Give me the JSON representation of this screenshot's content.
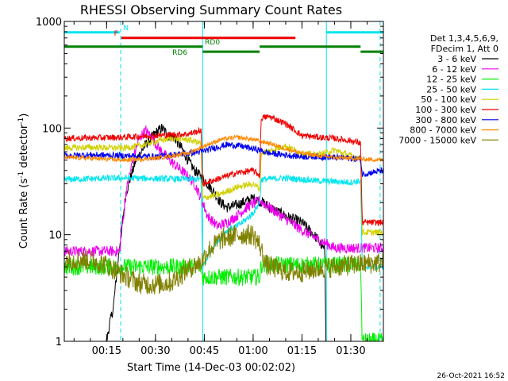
{
  "chart_data": {
    "type": "line",
    "title": "RHESSI Observing Summary Count Rates",
    "xlabel": "Start Time (14-Dec-03 00:02:02)",
    "ylabel_main": "Count Rate (s",
    "ylabel_sup1": "-1",
    "ylabel_mid": " detector",
    "ylabel_sup2": "-1",
    "ylabel_end": ")",
    "timestamp": "26-Oct-2021 16:52",
    "y_scale": "log",
    "ylim": [
      1,
      1000
    ],
    "xlim_minutes": [
      2.0,
      100.0
    ],
    "y_ticks": [
      {
        "value": 1,
        "label": "1"
      },
      {
        "value": 10,
        "label": "10"
      },
      {
        "value": 100,
        "label": "100"
      },
      {
        "value": 1000,
        "label": "1000"
      }
    ],
    "x_ticks": [
      {
        "minute": 15,
        "label": "00:15"
      },
      {
        "minute": 30,
        "label": "00:30"
      },
      {
        "minute": 45,
        "label": "00:45"
      },
      {
        "minute": 60,
        "label": "01:00"
      },
      {
        "minute": 75,
        "label": "01:15"
      },
      {
        "minute": 90,
        "label": "01:30"
      }
    ],
    "legend_header": [
      "Det 1,3,4,5,6,9,",
      "FDecim 1, Att 0"
    ],
    "legend_placement": "right",
    "flag_bars": [
      {
        "label": "N",
        "color": "#00e5ee",
        "value": 790,
        "segments": [
          [
            2,
            19.0
          ],
          [
            82.5,
            100
          ]
        ]
      },
      {
        "label": "F",
        "color": "#ee0000",
        "value": 700,
        "segments": [
          [
            19.5,
            73.0
          ]
        ]
      },
      {
        "label": "RD0",
        "color": "#008000",
        "value": 580,
        "segments": [
          [
            2,
            44.5
          ],
          [
            62.0,
            93.0
          ]
        ]
      },
      {
        "label": "RD6",
        "color": "#008000",
        "value": 520,
        "segments": [
          [
            44.5,
            62.0
          ],
          [
            93.0,
            100
          ]
        ]
      }
    ],
    "night_marks": [
      {
        "minute": 19.3,
        "style": "dashed"
      },
      {
        "minute": 44.5,
        "style": "solid"
      },
      {
        "minute": 82.5,
        "style": "solid"
      },
      {
        "minute": 99.0,
        "style": "dashed"
      }
    ],
    "series": [
      {
        "name": "3 - 6 keV",
        "color": "#000000",
        "noise": 0.05,
        "points": [
          [
            13,
            0.5
          ],
          [
            15,
            1
          ],
          [
            16,
            1.5
          ],
          [
            17,
            2
          ],
          [
            19,
            8
          ],
          [
            21,
            25
          ],
          [
            24,
            50
          ],
          [
            27,
            70
          ],
          [
            30,
            90
          ],
          [
            32,
            100
          ],
          [
            34,
            85
          ],
          [
            36,
            80
          ],
          [
            38,
            65
          ],
          [
            40,
            50
          ],
          [
            42,
            40
          ],
          [
            44,
            35
          ],
          [
            46,
            30
          ],
          [
            48,
            25
          ],
          [
            50,
            20
          ],
          [
            52,
            18
          ],
          [
            55,
            19
          ],
          [
            60,
            22
          ],
          [
            63,
            20
          ],
          [
            65,
            18
          ],
          [
            70,
            15
          ],
          [
            75,
            13
          ],
          [
            80,
            9
          ],
          [
            82,
            7
          ],
          [
            82.5,
            0.5
          ]
        ]
      },
      {
        "name": "6 - 12 keV",
        "color": "#ee00ee",
        "noise": 0.05,
        "points": [
          [
            13,
            7
          ],
          [
            19,
            7
          ],
          [
            21,
            25
          ],
          [
            23,
            50
          ],
          [
            25,
            80
          ],
          [
            27,
            95
          ],
          [
            29,
            80
          ],
          [
            31,
            65
          ],
          [
            33,
            55
          ],
          [
            36,
            45
          ],
          [
            38,
            40
          ],
          [
            40,
            35
          ],
          [
            42,
            30
          ],
          [
            44,
            22
          ],
          [
            46,
            15
          ],
          [
            49,
            12
          ],
          [
            52,
            13
          ],
          [
            55,
            15
          ],
          [
            58,
            18
          ],
          [
            62,
            21
          ],
          [
            65,
            18
          ],
          [
            70,
            14
          ],
          [
            75,
            11
          ],
          [
            80,
            9
          ],
          [
            85,
            7.5
          ]
        ]
      },
      {
        "name": "12 - 25 keV",
        "color": "#00ee00",
        "noise": 0.08,
        "points": [
          [
            2,
            5
          ],
          [
            44,
            5
          ],
          [
            44.5,
            4
          ],
          [
            62,
            4
          ],
          [
            62.5,
            5.2
          ],
          [
            93,
            5.2
          ],
          [
            93.5,
            1
          ],
          [
            100,
            1
          ]
        ]
      },
      {
        "name": "25 - 50 keV",
        "color": "#00e5ee",
        "noise": 0.03,
        "points": [
          [
            2,
            33
          ],
          [
            20,
            34
          ],
          [
            44,
            33
          ],
          [
            44.5,
            5
          ],
          [
            48,
            8
          ],
          [
            52,
            11
          ],
          [
            55,
            12
          ],
          [
            58,
            14
          ],
          [
            60,
            16
          ],
          [
            62,
            20
          ],
          [
            62.5,
            33
          ],
          [
            70,
            34
          ],
          [
            80,
            32
          ],
          [
            90,
            31
          ],
          [
            93,
            32
          ],
          [
            93.5,
            5
          ],
          [
            100,
            5
          ]
        ]
      },
      {
        "name": "50 - 100 keV",
        "color": "#d0d000",
        "noise": 0.03,
        "points": [
          [
            2,
            65
          ],
          [
            10,
            66
          ],
          [
            20,
            65
          ],
          [
            25,
            68
          ],
          [
            30,
            75
          ],
          [
            35,
            80
          ],
          [
            40,
            78
          ],
          [
            44,
            72
          ],
          [
            44.5,
            22
          ],
          [
            50,
            24
          ],
          [
            55,
            28
          ],
          [
            60,
            30
          ],
          [
            62,
            27
          ],
          [
            62.5,
            58
          ],
          [
            70,
            68
          ],
          [
            75,
            58
          ],
          [
            80,
            56
          ],
          [
            85,
            62
          ],
          [
            90,
            55
          ],
          [
            93,
            52
          ],
          [
            93.5,
            10.5
          ],
          [
            100,
            10.5
          ]
        ]
      },
      {
        "name": "100 - 300 keV",
        "color": "#ee0000",
        "noise": 0.03,
        "points": [
          [
            2,
            80
          ],
          [
            20,
            82
          ],
          [
            30,
            85
          ],
          [
            40,
            88
          ],
          [
            44,
            95
          ],
          [
            44.5,
            30
          ],
          [
            50,
            34
          ],
          [
            55,
            38
          ],
          [
            60,
            40
          ],
          [
            62,
            36
          ],
          [
            62.5,
            125
          ],
          [
            65,
            128
          ],
          [
            70,
            110
          ],
          [
            75,
            85
          ],
          [
            80,
            82
          ],
          [
            85,
            80
          ],
          [
            90,
            76
          ],
          [
            93,
            72
          ],
          [
            93.5,
            13
          ],
          [
            100,
            13
          ]
        ]
      },
      {
        "name": "300 - 800 keV",
        "color": "#0000ee",
        "noise": 0.03,
        "points": [
          [
            2,
            55
          ],
          [
            10,
            56
          ],
          [
            20,
            55
          ],
          [
            30,
            54
          ],
          [
            35,
            56
          ],
          [
            40,
            58
          ],
          [
            44,
            60
          ],
          [
            48,
            65
          ],
          [
            52,
            70
          ],
          [
            56,
            68
          ],
          [
            60,
            64
          ],
          [
            62,
            62
          ],
          [
            65,
            58
          ],
          [
            70,
            56
          ],
          [
            75,
            54
          ],
          [
            80,
            54
          ],
          [
            85,
            53
          ],
          [
            90,
            52
          ],
          [
            93,
            51
          ],
          [
            93.5,
            37
          ],
          [
            100,
            40
          ]
        ]
      },
      {
        "name": "800 - 7000 keV",
        "color": "#ff8800",
        "noise": 0.02,
        "points": [
          [
            2,
            53
          ],
          [
            10,
            52
          ],
          [
            20,
            50
          ],
          [
            30,
            52
          ],
          [
            40,
            58
          ],
          [
            45,
            68
          ],
          [
            50,
            78
          ],
          [
            55,
            82
          ],
          [
            60,
            78
          ],
          [
            65,
            72
          ],
          [
            70,
            64
          ],
          [
            75,
            58
          ],
          [
            80,
            55
          ],
          [
            85,
            53
          ],
          [
            90,
            52
          ],
          [
            100,
            50
          ]
        ]
      },
      {
        "name": "7000 - 15000 keV",
        "color": "#808000",
        "noise": 0.1,
        "points": [
          [
            2,
            5.8
          ],
          [
            10,
            5.8
          ],
          [
            15,
            5.2
          ],
          [
            20,
            4.2
          ],
          [
            25,
            3.5
          ],
          [
            30,
            3.4
          ],
          [
            35,
            3.6
          ],
          [
            40,
            4.8
          ],
          [
            44,
            5.5
          ],
          [
            46,
            7
          ],
          [
            50,
            9
          ],
          [
            55,
            10
          ],
          [
            60,
            10
          ],
          [
            62,
            8
          ],
          [
            64,
            5.2
          ],
          [
            70,
            4.5
          ],
          [
            75,
            4.5
          ],
          [
            80,
            4.8
          ],
          [
            85,
            5
          ],
          [
            90,
            5.2
          ],
          [
            100,
            5.5
          ]
        ]
      }
    ]
  }
}
